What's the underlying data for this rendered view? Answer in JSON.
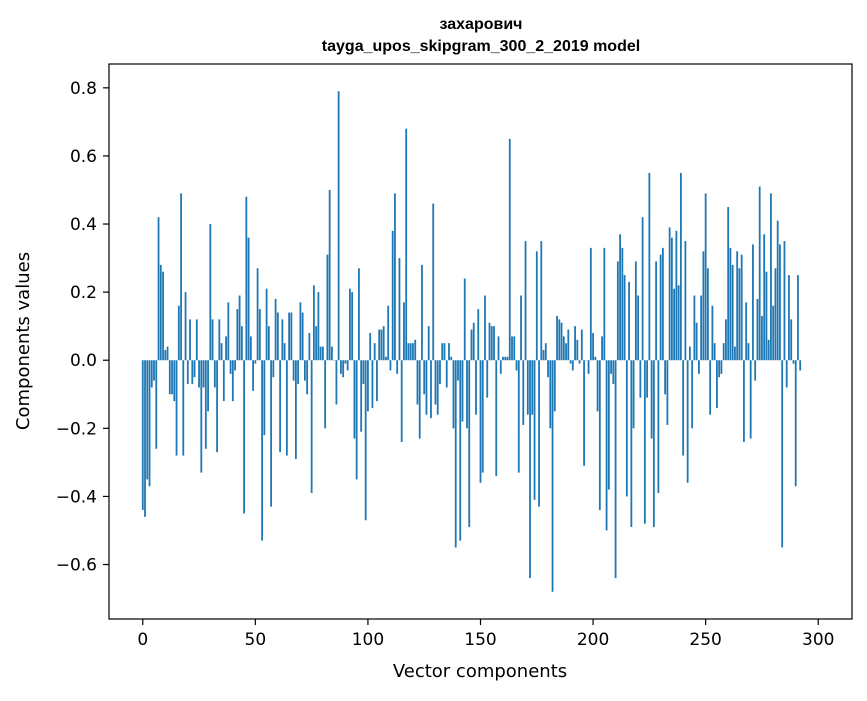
{
  "chart_data": {
    "type": "bar",
    "title_line1": "захарович",
    "title_line2": "tayga_upos_skipgram_300_2_2019 model",
    "xlabel": "Vector components",
    "ylabel": "Components values",
    "xlim": [
      -15,
      315
    ],
    "ylim": [
      -0.76,
      0.87
    ],
    "xticks": [
      0,
      50,
      100,
      150,
      200,
      250,
      300
    ],
    "xtick_labels": [
      "0",
      "50",
      "100",
      "150",
      "200",
      "250",
      "300"
    ],
    "yticks": [
      -0.6,
      -0.4,
      -0.2,
      0.0,
      0.2,
      0.4,
      0.6,
      0.8
    ],
    "ytick_labels": [
      "−0.6",
      "−0.4",
      "−0.2",
      "0.0",
      "0.2",
      "0.4",
      "0.6",
      "0.8"
    ],
    "bar_color": "#1f77b4",
    "values": [
      -0.44,
      -0.46,
      -0.35,
      -0.37,
      -0.08,
      -0.06,
      -0.26,
      0.42,
      0.28,
      0.26,
      0.03,
      0.04,
      -0.1,
      -0.1,
      -0.12,
      -0.28,
      0.16,
      0.49,
      -0.28,
      0.2,
      -0.07,
      0.12,
      -0.07,
      -0.05,
      0.12,
      -0.08,
      -0.33,
      -0.08,
      -0.26,
      -0.15,
      0.4,
      0.12,
      -0.08,
      -0.27,
      0.12,
      0.05,
      -0.12,
      0.07,
      0.17,
      -0.04,
      -0.12,
      -0.03,
      0.15,
      0.19,
      0.1,
      -0.45,
      0.48,
      0.36,
      0.07,
      -0.09,
      -0.01,
      0.27,
      0.15,
      -0.53,
      -0.22,
      0.21,
      0.1,
      -0.43,
      -0.05,
      0.18,
      0.14,
      -0.27,
      0.12,
      0.05,
      -0.28,
      0.14,
      0.14,
      -0.06,
      -0.29,
      -0.07,
      0.17,
      0.14,
      -0.06,
      -0.1,
      0.08,
      -0.39,
      0.22,
      0.1,
      0.2,
      0.04,
      0.04,
      -0.2,
      0.31,
      0.5,
      0.04,
      0.0,
      -0.13,
      0.79,
      -0.04,
      -0.05,
      -0.01,
      -0.03,
      0.21,
      0.2,
      -0.23,
      -0.35,
      0.27,
      -0.21,
      -0.07,
      -0.47,
      -0.15,
      0.08,
      -0.14,
      0.05,
      -0.12,
      0.09,
      0.09,
      0.1,
      0.01,
      0.16,
      -0.03,
      0.38,
      0.49,
      -0.04,
      0.3,
      -0.24,
      0.17,
      0.68,
      0.05,
      0.05,
      0.05,
      0.06,
      -0.13,
      -0.23,
      0.28,
      -0.1,
      -0.16,
      0.1,
      -0.17,
      0.46,
      -0.13,
      -0.16,
      -0.07,
      0.05,
      0.05,
      -0.08,
      0.05,
      0.01,
      -0.2,
      -0.55,
      -0.06,
      -0.53,
      -0.18,
      0.24,
      -0.2,
      -0.49,
      0.09,
      0.11,
      -0.16,
      0.15,
      -0.36,
      -0.33,
      0.19,
      -0.11,
      0.11,
      0.1,
      0.1,
      -0.34,
      0.07,
      -0.04,
      0.01,
      0.01,
      0.01,
      0.65,
      0.07,
      0.07,
      -0.03,
      -0.33,
      0.19,
      -0.19,
      0.35,
      -0.16,
      -0.64,
      -0.16,
      -0.41,
      0.32,
      -0.43,
      0.35,
      0.03,
      0.05,
      -0.05,
      -0.2,
      -0.68,
      -0.15,
      0.13,
      0.12,
      0.11,
      0.07,
      0.05,
      0.09,
      -0.01,
      -0.03,
      0.1,
      0.06,
      -0.01,
      0.09,
      -0.31,
      0.0,
      -0.04,
      0.33,
      0.08,
      0.01,
      -0.15,
      -0.44,
      0.07,
      0.33,
      -0.5,
      -0.38,
      -0.04,
      -0.07,
      -0.64,
      0.29,
      0.37,
      0.33,
      0.25,
      -0.4,
      0.23,
      -0.49,
      -0.2,
      0.29,
      0.19,
      -0.11,
      0.42,
      -0.48,
      -0.11,
      0.55,
      -0.23,
      -0.49,
      0.29,
      -0.39,
      0.31,
      0.33,
      -0.1,
      -0.19,
      0.39,
      0.36,
      0.21,
      0.38,
      0.22,
      0.55,
      -0.28,
      0.35,
      -0.36,
      0.04,
      -0.2,
      0.19,
      0.11,
      -0.04,
      0.19,
      0.32,
      0.49,
      0.27,
      -0.16,
      0.16,
      0.05,
      -0.14,
      -0.05,
      -0.04,
      0.05,
      0.12,
      0.45,
      0.33,
      0.28,
      0.04,
      0.32,
      0.27,
      0.31,
      -0.24,
      0.17,
      0.05,
      -0.23,
      0.34,
      -0.06,
      0.18,
      0.51,
      0.13,
      0.37,
      0.26,
      0.06,
      0.49,
      0.16,
      0.27,
      0.41,
      0.34,
      -0.55,
      0.35,
      -0.08,
      0.25,
      0.12,
      -0.01,
      -0.37,
      0.25,
      -0.03
    ]
  }
}
